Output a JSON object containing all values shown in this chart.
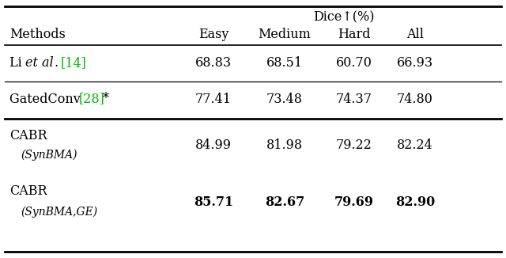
{
  "title": "Dice↑(%)",
  "col_headers": [
    "Easy",
    "Medium",
    "Hard",
    "All"
  ],
  "rows": [
    {
      "values": [
        "68.83",
        "68.51",
        "60.70",
        "66.93"
      ],
      "bold": false
    },
    {
      "values": [
        "77.41",
        "73.48",
        "74.37",
        "74.80"
      ],
      "bold": false
    },
    {
      "values": [
        "84.99",
        "81.98",
        "79.22",
        "82.24"
      ],
      "bold": false
    },
    {
      "values": [
        "85.71",
        "82.67",
        "79.69",
        "82.90"
      ],
      "bold": true
    }
  ],
  "bg_color": "#ffffff",
  "text_color": "#000000",
  "green_color": "#00bb00",
  "fontsize": 11.5,
  "small_fontsize": 10.0
}
